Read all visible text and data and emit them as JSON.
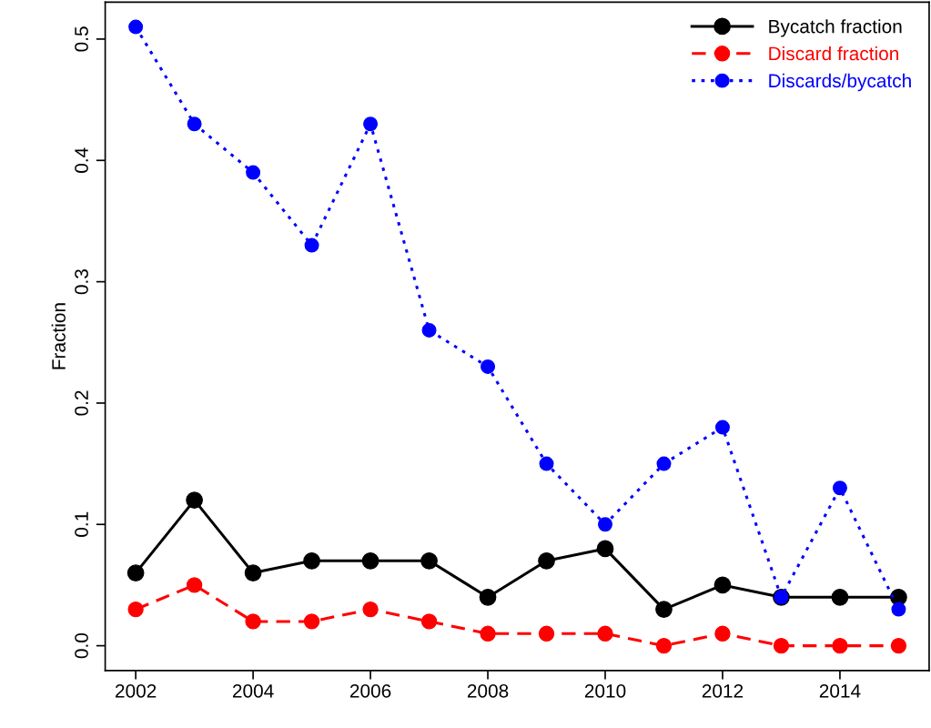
{
  "chart_data": {
    "type": "line",
    "ylabel": "Fraction",
    "x": [
      2002,
      2003,
      2004,
      2005,
      2006,
      2007,
      2008,
      2009,
      2010,
      2011,
      2012,
      2013,
      2014,
      2015
    ],
    "series": [
      {
        "name": "Bycatch fraction",
        "color": "#000000",
        "line_style": "solid",
        "values": [
          0.06,
          0.12,
          0.06,
          0.07,
          0.07,
          0.07,
          0.04,
          0.07,
          0.08,
          0.03,
          0.05,
          0.04,
          0.04,
          0.04
        ]
      },
      {
        "name": "Discard fraction",
        "color": "#ff0000",
        "line_style": "dashed",
        "values": [
          0.03,
          0.05,
          0.02,
          0.02,
          0.03,
          0.02,
          0.01,
          0.01,
          0.01,
          0.0,
          0.01,
          0.0,
          0.0,
          0.0
        ]
      },
      {
        "name": "Discards/bycatch",
        "color": "#0000ff",
        "line_style": "dotted",
        "values": [
          0.51,
          0.43,
          0.39,
          0.33,
          0.43,
          0.26,
          0.23,
          0.15,
          0.1,
          0.15,
          0.18,
          0.04,
          0.13,
          0.03
        ]
      }
    ],
    "xlim": [
      2001.48,
      2015.52
    ],
    "xticks": [
      2002,
      2004,
      2006,
      2008,
      2010,
      2012,
      2014
    ],
    "ylim": [
      -0.0204,
      0.5304
    ],
    "yticks": [
      {
        "value": 0,
        "label": "0.0"
      },
      0.1,
      0.2,
      0.3,
      0.4,
      0.5
    ],
    "marker": "circle",
    "grid": false,
    "legend": "top right"
  }
}
